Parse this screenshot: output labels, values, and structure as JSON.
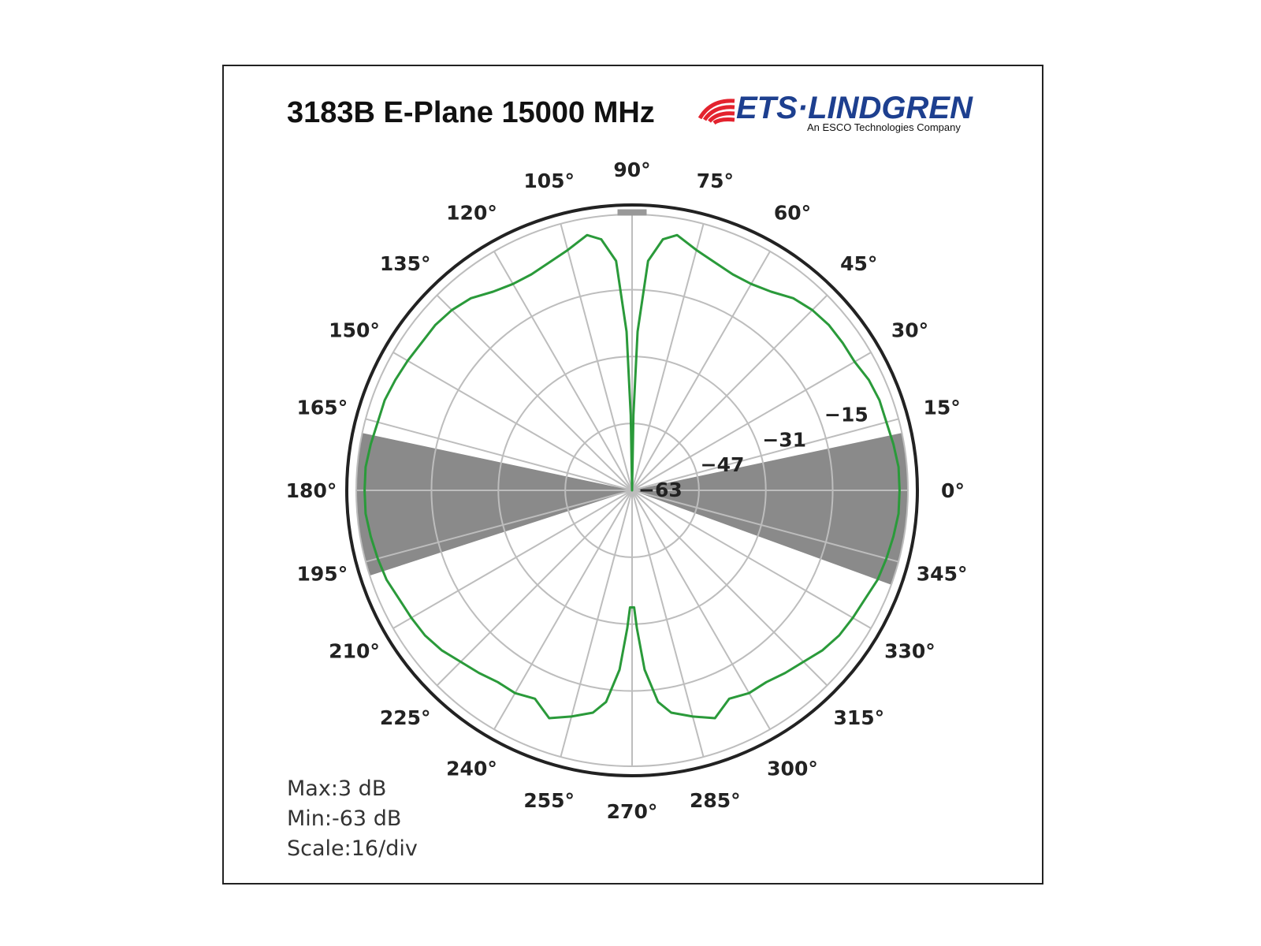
{
  "title": "3183B E-Plane 15000 MHz",
  "logo": {
    "brand": "ETS·LINDGREN",
    "tagline": "An ESCO Technologies Company",
    "color": "#e3232e",
    "text_color": "#1d3f8f"
  },
  "stats": {
    "max": "Max:3 dB",
    "min": "Min:-63 dB",
    "scale": "Scale:16/div"
  },
  "colors": {
    "trace": "#2a9a3a",
    "sector_fill": "#8a8a8a",
    "grid": "#bdbdbd",
    "outer_ring": "#222222"
  },
  "chart_data": {
    "type": "polar",
    "title": "3183B E-Plane 15000 MHz",
    "radial_unit": "dB",
    "rlim": [
      -63,
      3
    ],
    "rticks": [
      -63,
      -47,
      -31,
      -15
    ],
    "rtick_labels": [
      "−63",
      "−47",
      "−31",
      "−15"
    ],
    "theta_ticks": [
      0,
      15,
      30,
      45,
      60,
      75,
      90,
      105,
      120,
      135,
      150,
      165,
      180,
      195,
      210,
      225,
      240,
      255,
      270,
      285,
      300,
      315,
      330,
      345
    ],
    "theta_labels": [
      "0°",
      "15°",
      "30°",
      "45°",
      "60°",
      "75°",
      "90°",
      "105°",
      "120°",
      "135°",
      "150°",
      "165°",
      "180°",
      "195°",
      "210°",
      "225°",
      "240°",
      "255°",
      "270°",
      "285°",
      "300°",
      "315°",
      "330°",
      "345°"
    ],
    "shaded_sectors_deg": [
      [
        -20,
        12
      ],
      [
        168,
        198
      ]
    ],
    "grid": true,
    "series": [
      {
        "theta": [
          0,
          5,
          10,
          15,
          20,
          25,
          30,
          35,
          40,
          45,
          50,
          55,
          60,
          65,
          70,
          75,
          80,
          83,
          86,
          88,
          89,
          90,
          91,
          92,
          94,
          97,
          100,
          105,
          110,
          115,
          120,
          125,
          130,
          135,
          140,
          145,
          150,
          155,
          160,
          165,
          170,
          175,
          180,
          185,
          190,
          195,
          200,
          205,
          210,
          215,
          220,
          225,
          230,
          235,
          240,
          245,
          250,
          255,
          260,
          263,
          266,
          268,
          269,
          270,
          271,
          272,
          274,
          277,
          280,
          285,
          290,
          295,
          300,
          305,
          310,
          315,
          320,
          325,
          330,
          335,
          340,
          345,
          350,
          355
        ],
        "r": [
          1,
          1,
          0.5,
          0,
          0,
          -0.5,
          -1.5,
          -1.5,
          -1.5,
          -2,
          -3,
          -5,
          -6,
          -6,
          -5,
          -3.5,
          -1,
          -2.5,
          -8,
          -25,
          -45,
          -63,
          -45,
          -25,
          -8,
          -2.5,
          -1,
          -3.5,
          -5,
          -6,
          -6,
          -5,
          -3,
          -2,
          -1.5,
          -1.5,
          -1,
          -0.5,
          0,
          0,
          0.5,
          1,
          1,
          1,
          0.5,
          0,
          -0.5,
          -1.5,
          -2,
          -2.5,
          -3.5,
          -5,
          -6,
          -7,
          -7,
          -8,
          -5,
          -7,
          -9,
          -12,
          -20,
          -30,
          -35,
          -35,
          -35,
          -30,
          -20,
          -12,
          -9,
          -7,
          -5,
          -8,
          -7,
          -7,
          -6,
          -5,
          -3.5,
          -2.5,
          -2,
          -1.5,
          -0.5,
          0,
          0.5,
          1
        ]
      }
    ]
  }
}
